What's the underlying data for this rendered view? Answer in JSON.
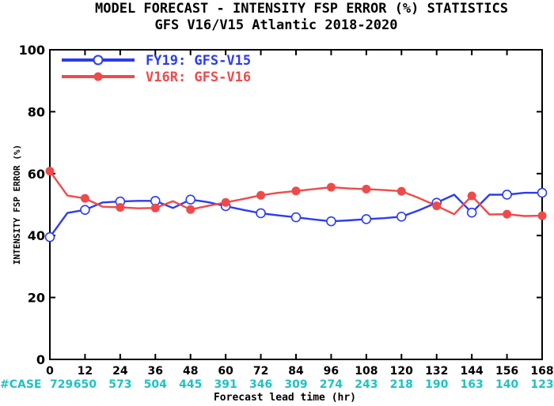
{
  "chart_data": {
    "type": "line",
    "title": "MODEL FORECAST - INTENSITY FSP ERROR (%) STATISTICS",
    "subtitle": "GFS V16/V15 Atlantic 2018-2020",
    "xlabel": "Forecast lead time (hr)",
    "ylabel": "INTENSITY FSP ERROR (%)",
    "xlim": [
      0,
      168
    ],
    "ylim": [
      0,
      100
    ],
    "x_ticks": [
      "0",
      "12",
      "24",
      "36",
      "48",
      "60",
      "72",
      "84",
      "96",
      "108",
      "120",
      "132",
      "144",
      "156",
      "168"
    ],
    "y_ticks": [
      "0",
      "20",
      "40",
      "60",
      "80",
      "100"
    ],
    "grid": false,
    "legend_position": "top-left",
    "series": [
      {
        "name": "FY19: GFS-V15",
        "color": "#2b3cf0",
        "x": [
          0,
          6,
          12,
          18,
          24,
          30,
          36,
          42,
          48,
          54,
          60,
          66,
          72,
          78,
          84,
          90,
          96,
          102,
          108,
          114,
          120,
          126,
          132,
          138,
          144,
          150,
          156,
          162,
          168
        ],
        "y": [
          39.5,
          47.3,
          48.3,
          50.7,
          51.0,
          51.2,
          51.2,
          48.9,
          51.6,
          50.8,
          49.5,
          48.3,
          47.2,
          46.5,
          45.9,
          45.2,
          44.6,
          44.9,
          45.3,
          45.6,
          46.1,
          48.2,
          50.6,
          53.2,
          47.4,
          53.2,
          53.2,
          53.8,
          53.8
        ],
        "markers_x": [
          0,
          12,
          24,
          36,
          48,
          60,
          72,
          84,
          96,
          108,
          120,
          132,
          144,
          156,
          168
        ],
        "marker": "open-circle"
      },
      {
        "name": "V16R: GFS-V16",
        "color": "#ef4a4a",
        "x": [
          0,
          6,
          12,
          18,
          24,
          30,
          36,
          42,
          48,
          54,
          60,
          66,
          72,
          78,
          84,
          90,
          96,
          102,
          108,
          114,
          120,
          126,
          132,
          138,
          144,
          150,
          156,
          162,
          168
        ],
        "y": [
          60.8,
          52.9,
          52.0,
          49.3,
          49.1,
          48.8,
          48.9,
          51.1,
          48.4,
          49.6,
          50.7,
          51.8,
          53.0,
          53.8,
          54.4,
          55.0,
          55.6,
          55.2,
          55.0,
          54.7,
          54.3,
          52.1,
          49.6,
          46.9,
          52.8,
          46.8,
          46.9,
          46.3,
          46.4
        ],
        "markers_x": [
          0,
          12,
          24,
          36,
          48,
          60,
          72,
          84,
          96,
          108,
          120,
          132,
          144,
          156,
          168
        ],
        "marker": "filled-circle"
      }
    ],
    "case_label": "#CASE",
    "case_counts": [
      "729",
      "650",
      "573",
      "504",
      "445",
      "391",
      "346",
      "309",
      "274",
      "243",
      "218",
      "190",
      "163",
      "140",
      "123"
    ]
  }
}
